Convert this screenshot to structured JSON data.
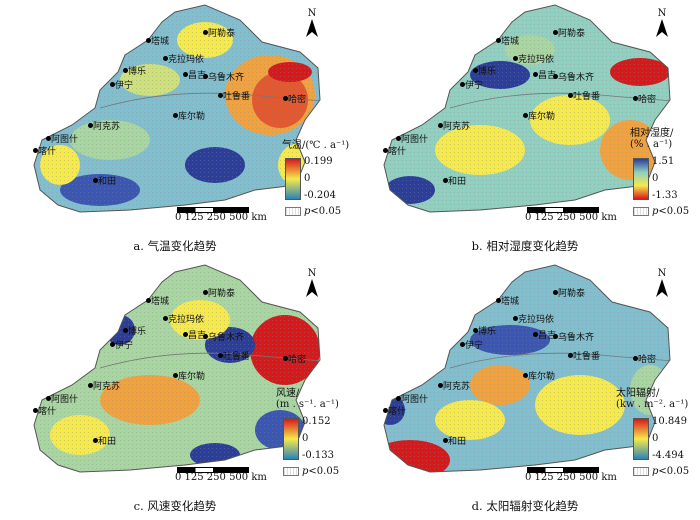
{
  "north_label": "N",
  "scale": {
    "labels": "0 125 250     500 km"
  },
  "significance": {
    "p_symbol": "p",
    "rest": "<0.05"
  },
  "cities": [
    "阿勒泰",
    "塔城",
    "克拉玛依",
    "博乐",
    "伊宁",
    "昌吉",
    "乌鲁木齐",
    "吐鲁番",
    "哈密",
    "库尔勒",
    "阿克苏",
    "阿图什",
    "喀什",
    "和田"
  ],
  "panels": [
    {
      "caption": "a.  气温变化趋势",
      "legend_title_1": "气温/(℃ . a⁻¹)",
      "legend_title_2": "",
      "max": "0.199",
      "mid": "0",
      "min": "-0.204",
      "colors": {
        "top": "#d7191c",
        "mid": "#f6e94a",
        "low": "#2b83ba"
      }
    },
    {
      "caption": "b.  相对湿度变化趋势",
      "legend_title_1": "相对湿度/",
      "legend_title_2": "(% . a⁻¹)",
      "max": "1.51",
      "mid": "0",
      "min": "-1.33",
      "colors": {
        "top": "#2c3e9c",
        "mid": "#f6e94a",
        "low": "#d7191c"
      }
    },
    {
      "caption": "c.  风速变化趋势",
      "legend_title_1": "风速/",
      "legend_title_2": "(m . s⁻¹. a⁻¹)",
      "max": "0.152",
      "mid": "0",
      "min": "-0.133",
      "colors": {
        "top": "#d7191c",
        "mid": "#f6e94a",
        "low": "#2b83ba"
      }
    },
    {
      "caption": "d.  太阳辐射变化趋势",
      "legend_title_1": "太阳辐射/",
      "legend_title_2": "(kw . m⁻². a⁻¹)",
      "max": "10.849",
      "mid": "0",
      "min": "-4.494",
      "colors": {
        "top": "#d7191c",
        "mid": "#f6e94a",
        "low": "#2b83ba"
      }
    }
  ]
}
